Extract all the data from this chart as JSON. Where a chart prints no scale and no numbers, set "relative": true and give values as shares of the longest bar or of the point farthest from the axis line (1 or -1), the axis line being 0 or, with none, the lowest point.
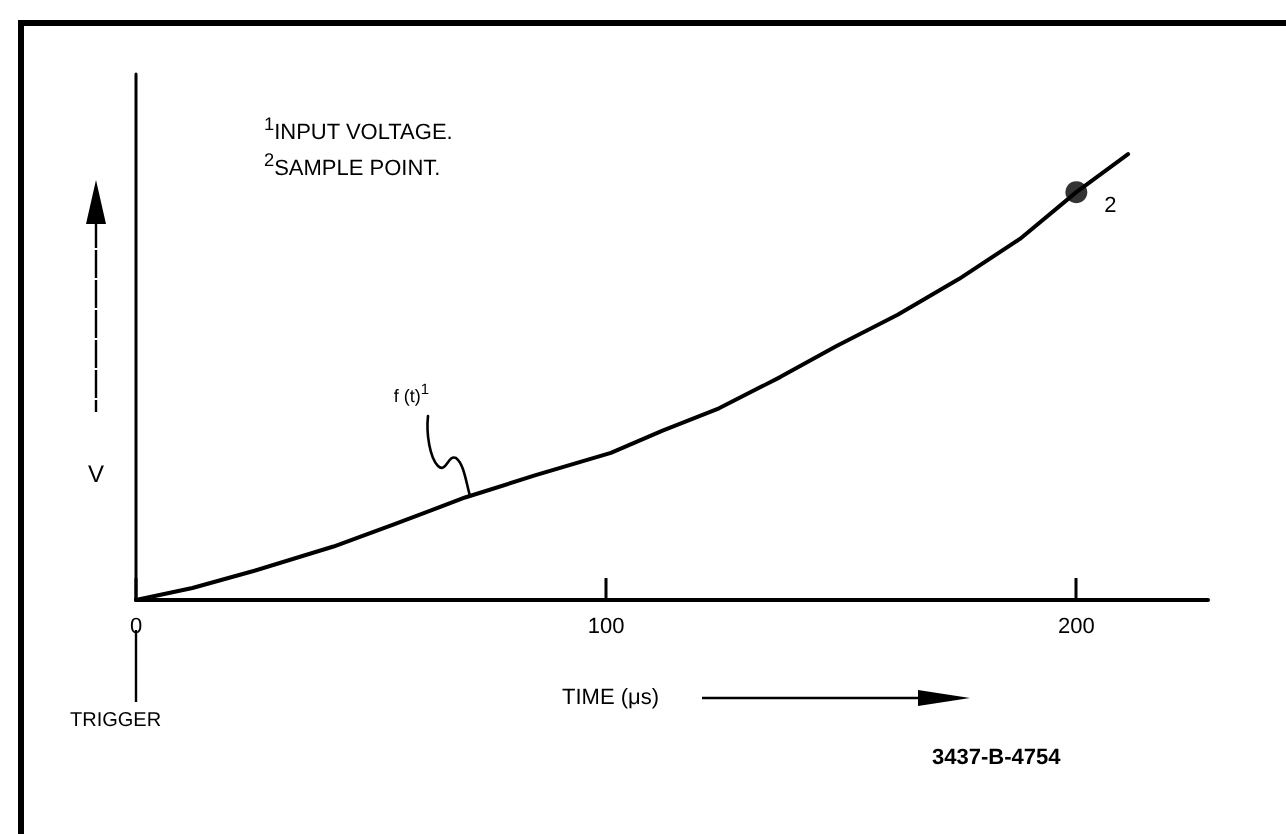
{
  "chart_data": {
    "type": "line",
    "relative": true,
    "xlabel": "TIME (μs)",
    "ylabel": "V",
    "xlim": [
      0,
      228
    ],
    "xticks": [
      0,
      100,
      200
    ],
    "grid": false,
    "marker": "none",
    "line_style": "solid",
    "series": [
      {
        "color": "#000000",
        "x": [
          0,
          12,
          25,
          42,
          55,
          70,
          85,
          101,
          112,
          124,
          137,
          149,
          162,
          175,
          188,
          200,
          211
        ],
        "values": [
          0,
          0.027,
          0.065,
          0.12,
          0.17,
          0.23,
          0.28,
          0.33,
          0.38,
          0.43,
          0.5,
          0.57,
          0.64,
          0.72,
          0.81,
          0.915,
          1
        ]
      },
      {
        "type": "scatter",
        "marker": "circle",
        "color": "#000000",
        "x": [
          200
        ],
        "values": [
          0.915
        ]
      }
    ],
    "annotations": [
      "$^{1}$INPUT VOLTAGE.",
      "$^{2}$SAMPLE POINT.",
      {
        "text": "f (t)$^{1}$",
        "x": 71,
        "y": 0.23
      },
      {
        "text": "2",
        "x": 200,
        "y": 0.915
      },
      "TRIGGER",
      "3437-B-4754"
    ]
  }
}
